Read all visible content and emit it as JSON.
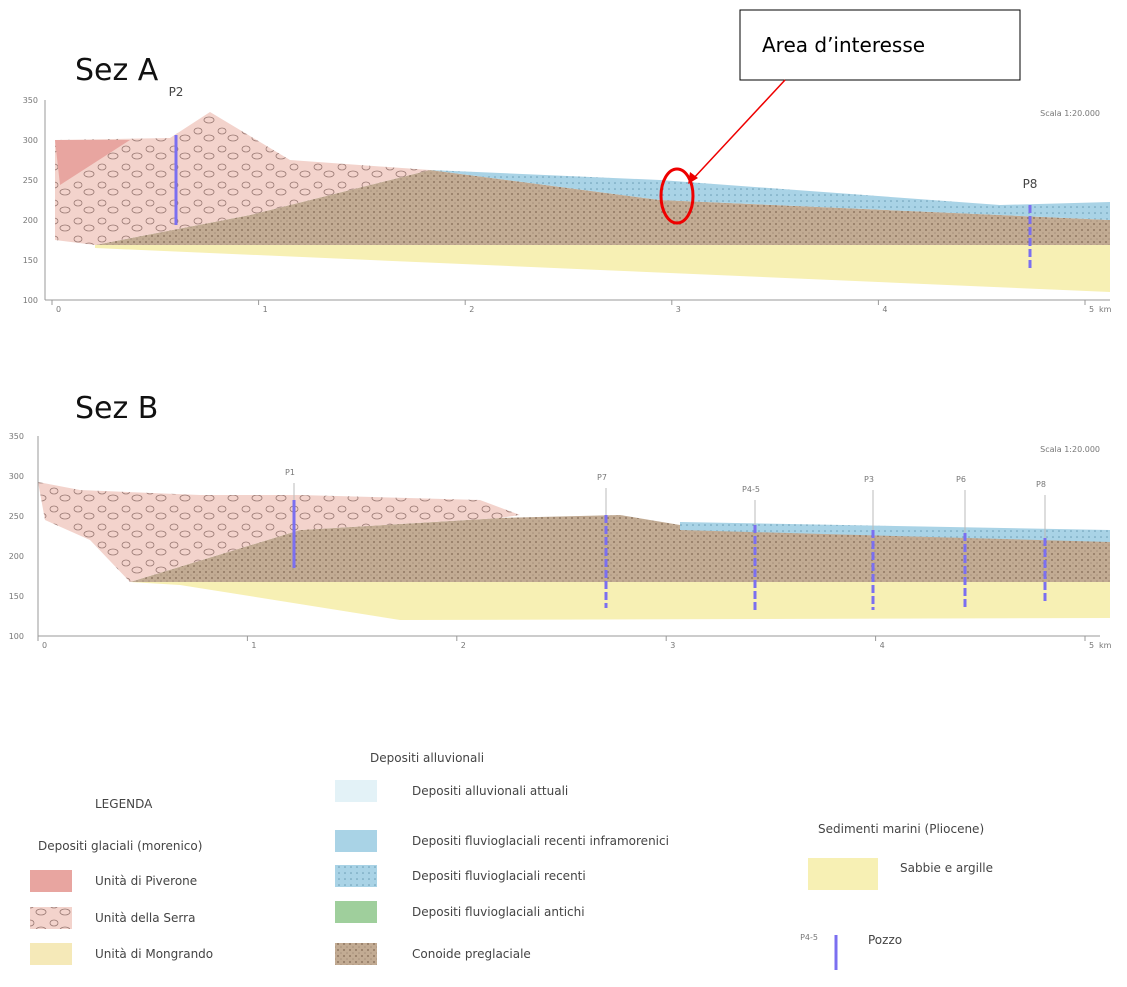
{
  "sections": [
    {
      "title": "Sez A",
      "scale": "Scala 1:20.000",
      "wells": [
        "P2",
        "P8"
      ],
      "xticks": [
        "0",
        "1",
        "2",
        "3",
        "4",
        "5"
      ],
      "unit": "km",
      "yticks": [
        "350",
        "300",
        "250",
        "200",
        "150",
        "100"
      ]
    },
    {
      "title": "Sez B",
      "scale": "Scala 1:20.000",
      "wells": [
        "P1",
        "P7",
        "P4-5",
        "P3",
        "P6",
        "P8"
      ],
      "xticks": [
        "0",
        "1",
        "2",
        "3",
        "4",
        "5"
      ],
      "unit": "km",
      "yticks": [
        "350",
        "300",
        "250",
        "200",
        "150",
        "100"
      ]
    }
  ],
  "annotation": "Area d’interesse",
  "legend": {
    "title": "LEGENDA",
    "glacial": {
      "heading": "Depositi glaciali (morenico)",
      "items": [
        "Unità di Piverone",
        "Unità della Serra",
        "Unità di Mongrando"
      ]
    },
    "alluvial": {
      "heading": "Depositi alluvionali",
      "items": [
        "Depositi alluvionali attuali",
        "Depositi fluvioglaciali recenti inframorenici",
        "Depositi fluvioglaciali recenti",
        "Depositi fluvioglaciali antichi",
        "Conoide preglaciale"
      ]
    },
    "marine": {
      "heading": "Sedimenti marini (Pliocene)",
      "items": [
        "Sabbie e argille"
      ]
    },
    "well": {
      "label": "P4-5",
      "name": "Pozzo"
    }
  }
}
